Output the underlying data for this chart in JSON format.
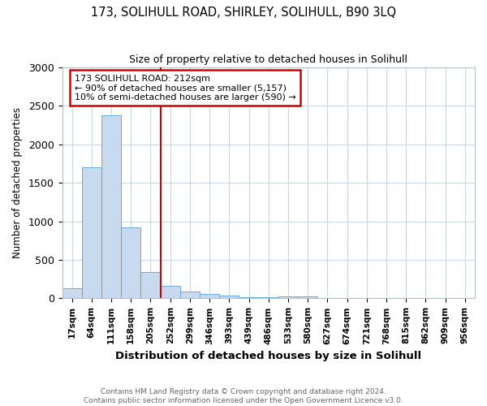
{
  "title": "173, SOLIHULL ROAD, SHIRLEY, SOLIHULL, B90 3LQ",
  "subtitle": "Size of property relative to detached houses in Solihull",
  "xlabel": "Distribution of detached houses by size in Solihull",
  "ylabel": "Number of detached properties",
  "bin_labels": [
    "17sqm",
    "64sqm",
    "111sqm",
    "158sqm",
    "205sqm",
    "252sqm",
    "299sqm",
    "346sqm",
    "393sqm",
    "439sqm",
    "486sqm",
    "533sqm",
    "580sqm",
    "627sqm",
    "674sqm",
    "721sqm",
    "768sqm",
    "815sqm",
    "862sqm",
    "909sqm",
    "956sqm"
  ],
  "bar_values": [
    130,
    1700,
    2380,
    920,
    340,
    160,
    90,
    60,
    40,
    20,
    15,
    30,
    30,
    0,
    0,
    0,
    0,
    0,
    0,
    0,
    0
  ],
  "bar_color": "#c8daf0",
  "bar_edge_color": "#5a9fd4",
  "property_line_x": 4.5,
  "property_line_color": "#cc0000",
  "annotation_text": "173 SOLIHULL ROAD: 212sqm\n← 90% of detached houses are smaller (5,157)\n10% of semi-detached houses are larger (590) →",
  "annotation_box_color": "#cc0000",
  "ylim": [
    0,
    3000
  ],
  "yticks": [
    0,
    500,
    1000,
    1500,
    2000,
    2500,
    3000
  ],
  "footer_text": "Contains HM Land Registry data © Crown copyright and database right 2024.\nContains public sector information licensed under the Open Government Licence v3.0.",
  "background_color": "#ffffff",
  "grid_color": "#c8d8ea"
}
